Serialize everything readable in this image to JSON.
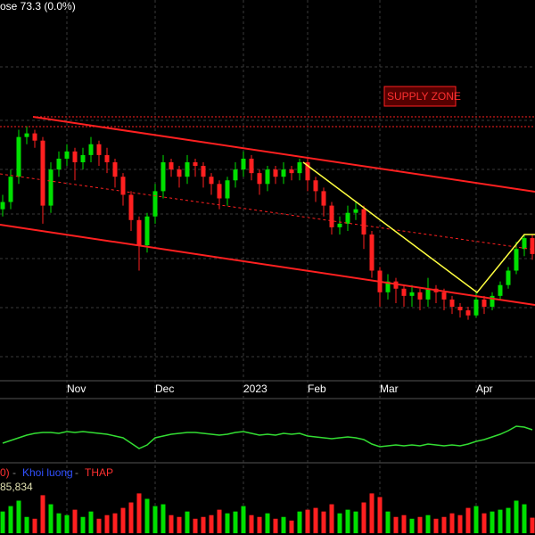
{
  "chart_data": {
    "type": "candlestick",
    "title": "ose 73.3 (0.0%)",
    "annotation": "SUPPLY ZONE",
    "categories": [
      null,
      null,
      null,
      null,
      null,
      null,
      null,
      null,
      "Nov",
      null,
      null,
      null,
      null,
      null,
      null,
      null,
      null,
      null,
      null,
      "Dec",
      null,
      null,
      null,
      null,
      null,
      null,
      null,
      null,
      null,
      null,
      "2023",
      null,
      null,
      null,
      null,
      null,
      null,
      null,
      "Feb",
      null,
      null,
      null,
      null,
      null,
      null,
      null,
      null,
      "Mar",
      null,
      null,
      null,
      null,
      null,
      null,
      null,
      null,
      null,
      null,
      null,
      "Apr",
      null,
      null,
      null,
      null,
      null,
      null,
      null
    ],
    "open": [
      79.5,
      80.5,
      84,
      89.5,
      90,
      89,
      80,
      85,
      86.5,
      87.5,
      86,
      87,
      88.5,
      87,
      86,
      84,
      81.5,
      78,
      74.5,
      78.5,
      82,
      86,
      85,
      84,
      86,
      85.5,
      84,
      83,
      81,
      83.5,
      85,
      86.5,
      84.5,
      83,
      85,
      84,
      85,
      84.5,
      86,
      83.5,
      82,
      80,
      77,
      77.5,
      79,
      79.5,
      76,
      71,
      68,
      69.5,
      68.5,
      67.5,
      68,
      67,
      68.5,
      68,
      67,
      66,
      65.5,
      64.8,
      67,
      66,
      67.5,
      69,
      71,
      74,
      75.5
    ],
    "high": [
      81.5,
      85,
      90.5,
      91,
      90.5,
      89.5,
      86,
      87.5,
      88.5,
      88,
      88,
      89.5,
      89,
      88,
      86.5,
      84.5,
      82,
      78.5,
      79,
      83,
      87,
      86.5,
      85.5,
      87,
      86.5,
      86,
      84.5,
      83.5,
      84,
      86,
      87.5,
      87,
      85,
      85.5,
      85.5,
      86,
      85.5,
      86.5,
      86.5,
      84,
      82.5,
      80.5,
      78.5,
      80,
      80.5,
      80,
      76.5,
      71.5,
      70.5,
      70,
      69,
      69,
      68.5,
      70,
      69,
      68.5,
      67.5,
      66.5,
      66,
      68,
      67.5,
      68,
      69.5,
      71.5,
      75,
      76,
      76
    ],
    "low": [
      78.5,
      79.5,
      83,
      88.5,
      88,
      77.5,
      79,
      84,
      85.5,
      83.5,
      85,
      86,
      85.5,
      84.5,
      82.5,
      80,
      76.5,
      71,
      73.5,
      77.5,
      81,
      84,
      82.5,
      83,
      84,
      82.5,
      81.5,
      79.5,
      80,
      82.5,
      84,
      83.5,
      81.5,
      82,
      83,
      83,
      83.5,
      83.5,
      82,
      80.5,
      78.5,
      76,
      76,
      76.5,
      78,
      74,
      70,
      66,
      67,
      66.5,
      66,
      66,
      65.5,
      66,
      66.5,
      65.5,
      65,
      64.5,
      64.2,
      64.5,
      65,
      65.5,
      67,
      68.5,
      70.5,
      73,
      72.5
    ],
    "close": [
      80.5,
      84,
      89.5,
      90,
      89,
      80,
      85,
      86.5,
      87.5,
      86,
      87,
      88.5,
      87,
      86,
      84,
      81.5,
      78,
      74.5,
      78.5,
      82,
      86,
      85,
      84,
      86,
      85.5,
      84,
      83,
      81,
      83.5,
      85,
      86.5,
      84.5,
      83,
      85,
      84,
      85,
      84.5,
      86,
      83.5,
      82,
      80,
      77,
      77.5,
      79,
      79.5,
      76,
      71,
      68,
      69.5,
      68.5,
      67.5,
      68,
      67,
      68.5,
      68,
      67,
      66,
      65.5,
      64.8,
      67,
      66,
      67.5,
      69,
      71,
      74,
      75.5,
      73.3
    ],
    "up_color": "#00e000",
    "down_color": "#ff2020",
    "ylim": [
      56,
      106
    ],
    "indicator": {
      "color": "#33dd33",
      "ylim": [
        20,
        80
      ],
      "values": [
        38,
        41,
        44,
        47,
        49,
        50,
        50,
        49,
        51,
        50,
        51,
        50,
        49,
        48,
        46,
        44,
        38,
        32,
        36,
        44,
        46,
        48,
        49,
        50,
        50,
        49,
        48,
        47,
        48,
        50,
        51,
        49,
        47,
        48,
        47,
        49,
        48,
        49,
        46,
        45,
        44,
        43,
        44,
        45,
        44,
        42,
        37,
        34,
        35,
        36,
        35,
        36,
        35,
        37,
        36,
        35,
        36,
        35,
        37,
        40,
        42,
        45,
        48,
        52,
        57,
        56,
        53
      ]
    },
    "volume": {
      "ylim": [
        0,
        350000
      ],
      "legend": [
        "0)",
        "Khoi luong",
        "THAP"
      ],
      "last_label": "85,834",
      "values": [
        120000,
        150000,
        180000,
        90000,
        80000,
        210000,
        160000,
        110000,
        100000,
        130000,
        90000,
        120000,
        80000,
        100000,
        110000,
        140000,
        170000,
        220000,
        190000,
        150000,
        160000,
        100000,
        90000,
        120000,
        80000,
        90000,
        100000,
        130000,
        110000,
        120000,
        150000,
        100000,
        90000,
        110000,
        80000,
        90000,
        70000,
        120000,
        130000,
        140000,
        120000,
        160000,
        110000,
        130000,
        120000,
        170000,
        220000,
        200000,
        120000,
        90000,
        100000,
        80000,
        90000,
        100000,
        80000,
        90000,
        110000,
        100000,
        140000,
        150000,
        110000,
        120000,
        130000,
        140000,
        180000,
        160000,
        85834
      ]
    }
  }
}
